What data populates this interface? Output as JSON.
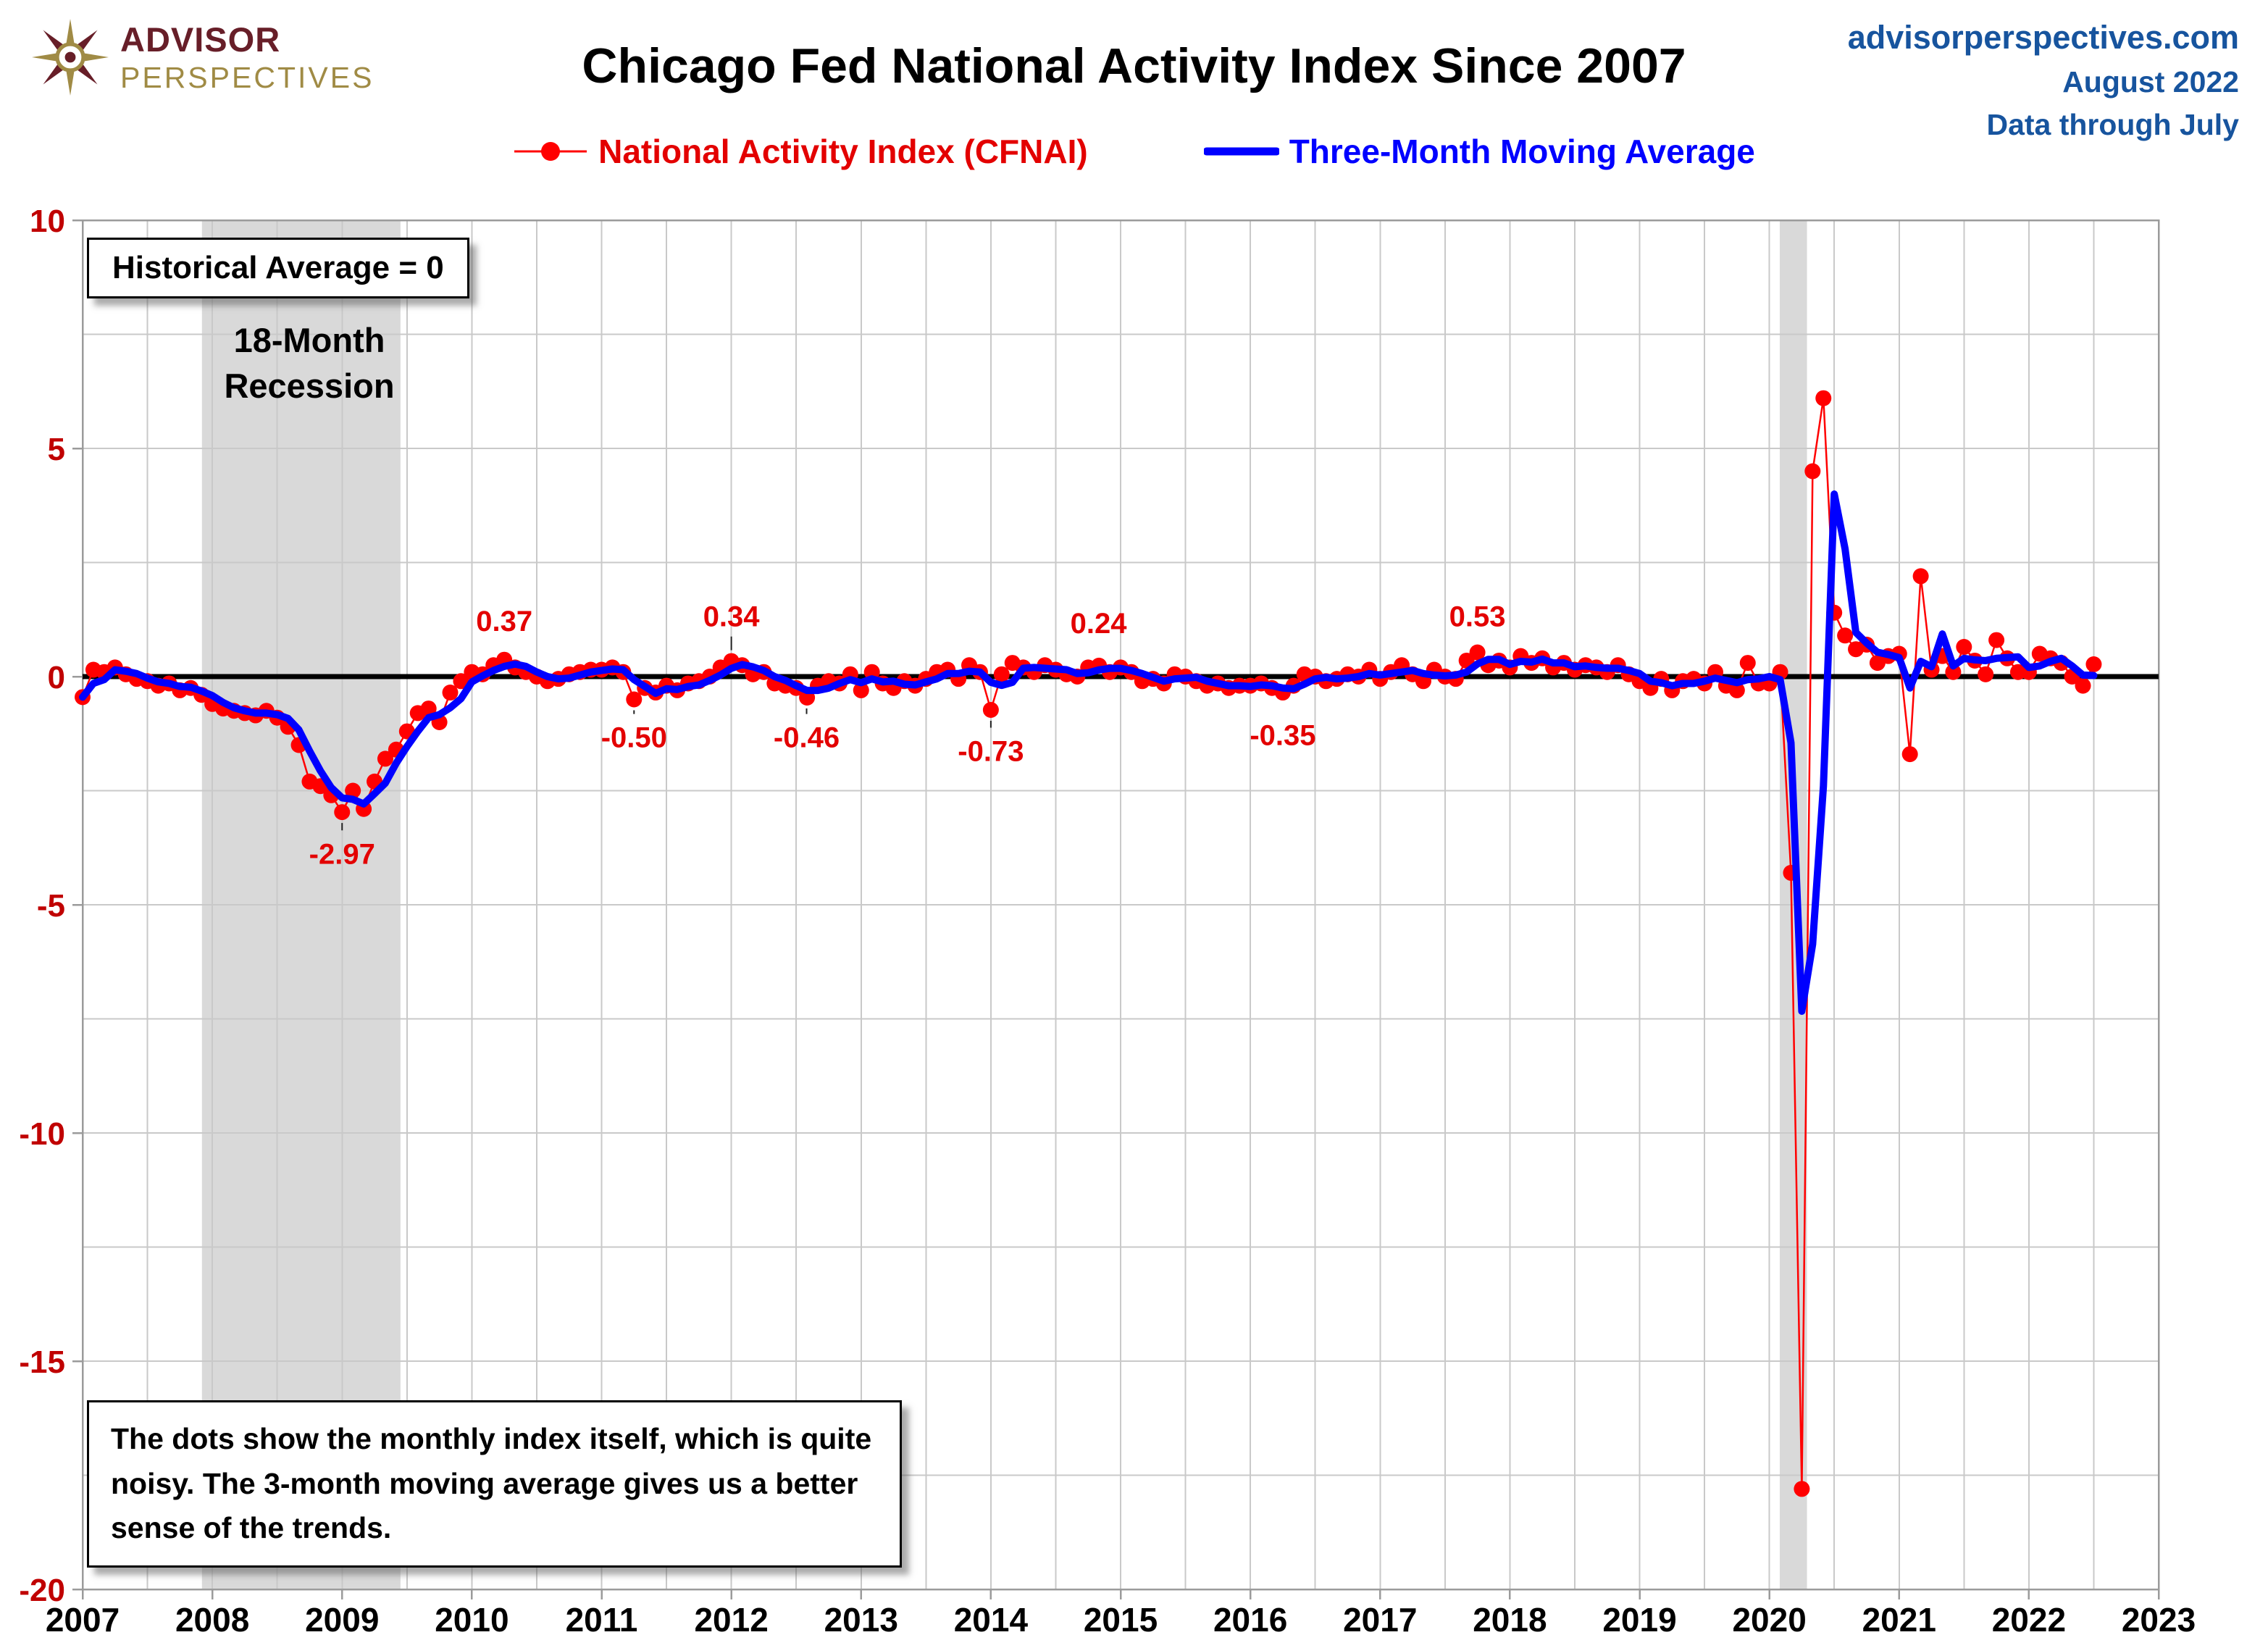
{
  "colors": {
    "red": "#FF0000",
    "label_red": "#E30000",
    "blue": "#0000FF",
    "header_blue": "#17549E",
    "axis_red": "#C00000",
    "maroon": "#671E28",
    "gold": "#A08B45",
    "grid": "#C9C9C9",
    "frame": "#9B9B9B",
    "band": "#D9D9D9"
  },
  "header": {
    "logo": {
      "line1": "ADVISOR",
      "line2": "PERSPECTIVES"
    },
    "title": "Chicago Fed National Activity Index Since 2007",
    "site": "advisorperspectives.com",
    "date": "August 2022",
    "through": "Data through July"
  },
  "legend": [
    {
      "label": "National Activity Index (CFNAI)"
    },
    {
      "label": "Three-Month Moving Average"
    }
  ],
  "annotations": {
    "historical_avg": "Historical Average = 0",
    "recession_line1": "18-Month",
    "recession_line2": "Recession",
    "note": "The dots show the monthly  index itself, which is quite noisy. The 3-month moving average gives us a better sense of the trends."
  },
  "chart_data": {
    "type": "line+scatter",
    "title": "Chicago Fed National Activity Index Since 2007",
    "x_start": "2007-01",
    "x_end": "2022-07",
    "frequency": "monthly",
    "xlim": [
      2007,
      2023
    ],
    "ylim": [
      -20,
      10
    ],
    "x_ticks": [
      2007,
      2008,
      2009,
      2010,
      2011,
      2012,
      2013,
      2014,
      2015,
      2016,
      2017,
      2018,
      2019,
      2020,
      2021,
      2022,
      2023
    ],
    "y_ticks": [
      10,
      5,
      0,
      -5,
      -10,
      -15,
      -20
    ],
    "grid": "major+minor",
    "zero_line": 0,
    "series": [
      {
        "name": "National Activity Index (CFNAI)",
        "style": "scatter+thin-line",
        "values": [
          -0.45,
          0.15,
          0.1,
          0.2,
          0.05,
          -0.05,
          -0.1,
          -0.2,
          -0.15,
          -0.3,
          -0.25,
          -0.4,
          -0.6,
          -0.7,
          -0.75,
          -0.8,
          -0.85,
          -0.75,
          -0.9,
          -1.1,
          -1.5,
          -2.3,
          -2.4,
          -2.6,
          -2.97,
          -2.5,
          -2.9,
          -2.3,
          -1.8,
          -1.6,
          -1.2,
          -0.8,
          -0.7,
          -1.0,
          -0.35,
          -0.1,
          0.1,
          0.05,
          0.25,
          0.37,
          0.2,
          0.1,
          0.0,
          -0.1,
          -0.05,
          0.05,
          0.1,
          0.15,
          0.15,
          0.2,
          0.1,
          -0.5,
          -0.25,
          -0.35,
          -0.2,
          -0.3,
          -0.15,
          -0.1,
          0.0,
          0.2,
          0.34,
          0.25,
          0.05,
          0.1,
          -0.15,
          -0.2,
          -0.25,
          -0.46,
          -0.2,
          -0.1,
          -0.15,
          0.05,
          -0.3,
          0.1,
          -0.15,
          -0.25,
          -0.1,
          -0.2,
          -0.05,
          0.1,
          0.15,
          -0.05,
          0.25,
          0.1,
          -0.73,
          0.05,
          0.3,
          0.2,
          0.1,
          0.25,
          0.15,
          0.05,
          0.0,
          0.2,
          0.24,
          0.1,
          0.2,
          0.1,
          -0.1,
          -0.05,
          -0.15,
          0.05,
          0.0,
          -0.1,
          -0.2,
          -0.15,
          -0.25,
          -0.2,
          -0.2,
          -0.15,
          -0.25,
          -0.35,
          -0.2,
          0.05,
          0.0,
          -0.1,
          -0.05,
          0.05,
          0.0,
          0.15,
          -0.05,
          0.1,
          0.25,
          0.05,
          -0.1,
          0.15,
          0.0,
          -0.05,
          0.35,
          0.53,
          0.25,
          0.35,
          0.2,
          0.45,
          0.3,
          0.4,
          0.2,
          0.3,
          0.15,
          0.25,
          0.2,
          0.1,
          0.25,
          0.05,
          -0.1,
          -0.25,
          -0.05,
          -0.3,
          -0.1,
          -0.05,
          -0.15,
          0.1,
          -0.2,
          -0.3,
          0.3,
          -0.15,
          -0.15,
          0.1,
          -4.3,
          -17.8,
          4.5,
          6.1,
          1.4,
          0.9,
          0.6,
          0.7,
          0.3,
          0.45,
          0.5,
          -1.7,
          2.2,
          0.15,
          0.45,
          0.1,
          0.65,
          0.35,
          0.05,
          0.8,
          0.4,
          0.1,
          0.1,
          0.5,
          0.4,
          0.3,
          0.0,
          -0.2,
          0.27
        ]
      },
      {
        "name": "Three-Month Moving Average",
        "style": "thick-line",
        "derived": "3-month moving average of CFNAI values"
      }
    ],
    "recession_bands": [
      {
        "from": 2007.92,
        "to": 2009.45
      },
      {
        "from": 2020.08,
        "to": 2020.29
      }
    ],
    "point_labels": [
      {
        "text": "-2.97",
        "x": 2009.0,
        "y": -4.1,
        "leader": true
      },
      {
        "text": "0.37",
        "x": 2010.25,
        "y": 1.0,
        "leader": false
      },
      {
        "text": "-0.50",
        "x": 2011.25,
        "y": -1.55,
        "leader": true
      },
      {
        "text": "0.34",
        "x": 2012.0,
        "y": 1.1,
        "leader": true
      },
      {
        "text": "-0.46",
        "x": 2012.58,
        "y": -1.55,
        "leader": true
      },
      {
        "text": "-0.73",
        "x": 2014.0,
        "y": -1.85,
        "leader": true
      },
      {
        "text": "0.24",
        "x": 2014.83,
        "y": 0.95,
        "leader": false
      },
      {
        "text": "-0.35",
        "x": 2016.25,
        "y": -1.5,
        "leader": false
      },
      {
        "text": "0.53",
        "x": 2017.75,
        "y": 1.1,
        "leader": false
      }
    ]
  }
}
